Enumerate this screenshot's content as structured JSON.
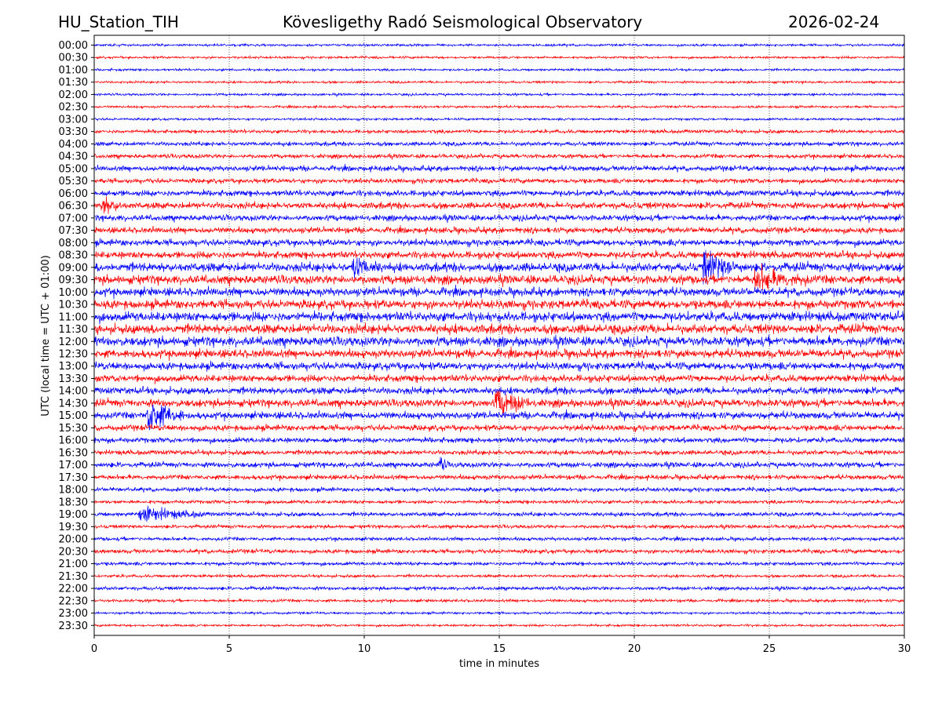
{
  "header": {
    "station": "HU_Station_TIH",
    "observatory": "Kövesligethy Radó Seismological Observatory",
    "date": "2026-02-24"
  },
  "chart_data": {
    "type": "line",
    "subtype": "helicorder",
    "xlabel": "time in minutes",
    "ylabel": "UTC (local time = UTC + 01:00)",
    "xlim": [
      0,
      30
    ],
    "xticks": [
      "0",
      "5",
      "10",
      "15",
      "20",
      "25",
      "30"
    ],
    "grid": "vertical dotted at 5-minute ticks",
    "colors": [
      "#0000ff",
      "#ff0000"
    ],
    "rows": [
      "00:00",
      "00:30",
      "01:00",
      "01:30",
      "02:00",
      "02:30",
      "03:00",
      "03:30",
      "04:00",
      "04:30",
      "05:00",
      "05:30",
      "06:00",
      "06:30",
      "07:00",
      "07:30",
      "08:00",
      "08:30",
      "09:00",
      "09:30",
      "10:00",
      "10:30",
      "11:00",
      "11:30",
      "12:00",
      "12:30",
      "13:00",
      "13:30",
      "14:00",
      "14:30",
      "15:00",
      "15:30",
      "16:00",
      "16:30",
      "17:00",
      "17:30",
      "18:00",
      "18:30",
      "19:00",
      "19:30",
      "20:00",
      "20:30",
      "21:00",
      "21:30",
      "22:00",
      "22:30",
      "23:00",
      "23:30"
    ],
    "noise_level": [
      0.2,
      0.2,
      0.2,
      0.2,
      0.2,
      0.2,
      0.2,
      0.3,
      0.35,
      0.35,
      0.45,
      0.4,
      0.5,
      0.55,
      0.5,
      0.5,
      0.55,
      0.6,
      0.75,
      0.75,
      0.7,
      0.75,
      0.8,
      0.8,
      0.8,
      0.7,
      0.65,
      0.6,
      0.6,
      0.65,
      0.6,
      0.5,
      0.45,
      0.4,
      0.45,
      0.4,
      0.35,
      0.3,
      0.35,
      0.3,
      0.3,
      0.35,
      0.3,
      0.25,
      0.3,
      0.25,
      0.2,
      0.2
    ],
    "events": [
      {
        "row": "06:30",
        "minute": 0.3,
        "amplitude": 1.2,
        "duration": 0.8
      },
      {
        "row": "09:00",
        "minute": 9.6,
        "amplitude": 1.3,
        "duration": 1.0
      },
      {
        "row": "09:00",
        "minute": 22.6,
        "amplitude": 2.0,
        "duration": 1.5
      },
      {
        "row": "09:30",
        "minute": 24.5,
        "amplitude": 1.3,
        "duration": 2.0
      },
      {
        "row": "14:30",
        "minute": 14.9,
        "amplitude": 1.8,
        "duration": 1.3
      },
      {
        "row": "15:00",
        "minute": 2.0,
        "amplitude": 2.4,
        "duration": 1.3
      },
      {
        "row": "17:00",
        "minute": 12.8,
        "amplitude": 1.2,
        "duration": 0.3
      },
      {
        "row": "19:00",
        "minute": 1.7,
        "amplitude": 1.0,
        "duration": 2.4
      }
    ]
  }
}
